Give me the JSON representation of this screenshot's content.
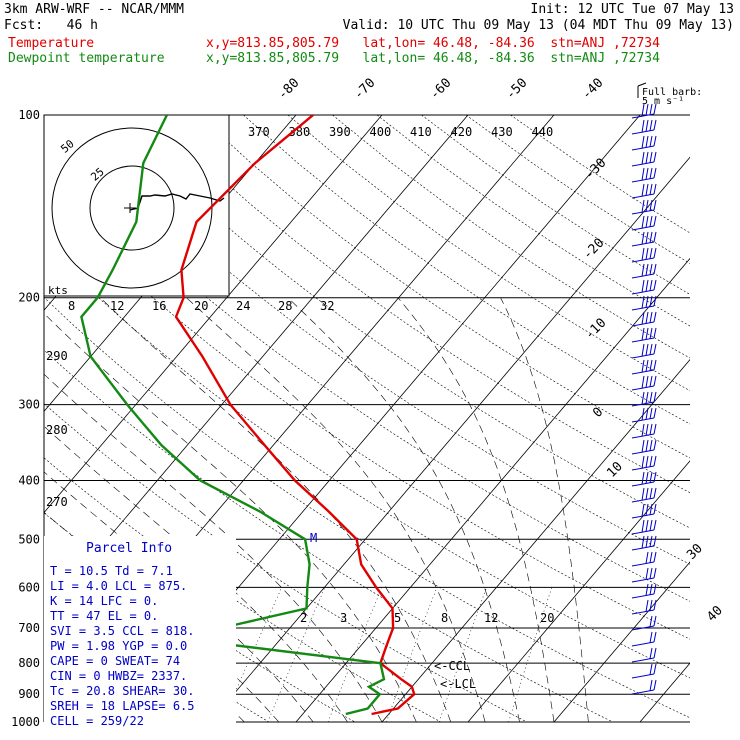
{
  "header": {
    "model": "3km ARW-WRF -- NCAR/MMM",
    "init": "Init: 12 UTC Tue 07 May 13",
    "fcst": "Fcst:   46 h",
    "valid": "Valid: 10 UTC Thu 09 May 13 (04 MDT Thu 09 May 13)",
    "temp_label": "Temperature",
    "dew_label": "Dewpoint temperature",
    "loc": "x,y=813.85,805.79   lat,lon= 46.48, -84.36  stn=ANJ ,72734"
  },
  "colors": {
    "temperature": "#e00000",
    "dewpoint": "#138a13",
    "wind": "#0000c8"
  },
  "wind_legend": {
    "title": "Full barb:",
    "value": "5 m s⁻¹"
  },
  "parcel": {
    "title": "Parcel Info",
    "rows": [
      "T  =    10.5  Td =    7.1",
      "LI =     4.0  LCL =  875.",
      "K  =      14  LFC =    0.",
      "TT =      47  EL  =    0.",
      "SVI =    3.5  CCL =  818.",
      "PW =    1.98  YGP =   0.0",
      "CAPE =     0  SWEAT=   74",
      "CIN  =     0  HWBZ= 2337.",
      "Tc  =   20.8  SHEAR=  30.",
      "SREH =    18  LAPSE=  6.5",
      "CELL = 259/22"
    ]
  },
  "hodograph": {
    "unit": "kts",
    "rings": [
      "25",
      "50"
    ]
  },
  "skewt_labels": {
    "temps_top": [
      "-80",
      "-70",
      "-60",
      "-50",
      "-40"
    ],
    "temps_right": [
      "-30",
      "-20",
      "-10",
      "0",
      "10",
      "30",
      "40"
    ],
    "theta_top": [
      "370",
      "380",
      "390",
      "400",
      "410",
      "420",
      "430",
      "440"
    ],
    "theta_left": [
      "290",
      "280",
      "270"
    ],
    "ept_row": [
      "8",
      "12",
      "16",
      "20",
      "24",
      "28",
      "32"
    ],
    "mix": [
      "2",
      "3",
      "5",
      "8",
      "12",
      "20"
    ],
    "ccl_label": "<-CCL",
    "lcl_label": "<-LCL",
    "m_marker": "M"
  },
  "chart_data": {
    "type": "line",
    "title": "",
    "ylabel": "",
    "y_scale": "log-pressure",
    "pressure_levels": [
      100,
      200,
      300,
      400,
      500,
      600,
      700,
      800,
      900,
      1000
    ],
    "series": [
      {
        "name": "Temperature",
        "points": [
          [
            100,
            -58
          ],
          [
            120,
            -60
          ],
          [
            150,
            -61
          ],
          [
            180,
            -58
          ],
          [
            200,
            -55
          ],
          [
            215,
            -54
          ],
          [
            250,
            -47
          ],
          [
            300,
            -39
          ],
          [
            350,
            -31
          ],
          [
            400,
            -24
          ],
          [
            450,
            -17
          ],
          [
            500,
            -11
          ],
          [
            550,
            -8
          ],
          [
            600,
            -4
          ],
          [
            650,
            0
          ],
          [
            700,
            2
          ],
          [
            750,
            3
          ],
          [
            800,
            4
          ],
          [
            850,
            8
          ],
          [
            875,
            10
          ],
          [
            900,
            11
          ],
          [
            950,
            10.5
          ],
          [
            970,
            8
          ]
        ]
      },
      {
        "name": "Dewpoint temperature",
        "points": [
          [
            100,
            -75
          ],
          [
            120,
            -73
          ],
          [
            150,
            -68
          ],
          [
            180,
            -66
          ],
          [
            200,
            -65
          ],
          [
            215,
            -65
          ],
          [
            250,
            -60
          ],
          [
            300,
            -51
          ],
          [
            350,
            -43
          ],
          [
            400,
            -35
          ],
          [
            450,
            -25
          ],
          [
            500,
            -17
          ],
          [
            550,
            -14
          ],
          [
            600,
            -12
          ],
          [
            650,
            -10
          ],
          [
            700,
            -18
          ],
          [
            720,
            -25
          ],
          [
            800,
            4
          ],
          [
            850,
            6
          ],
          [
            875,
            5
          ],
          [
            900,
            7
          ],
          [
            950,
            7
          ],
          [
            970,
            5
          ]
        ]
      }
    ]
  }
}
